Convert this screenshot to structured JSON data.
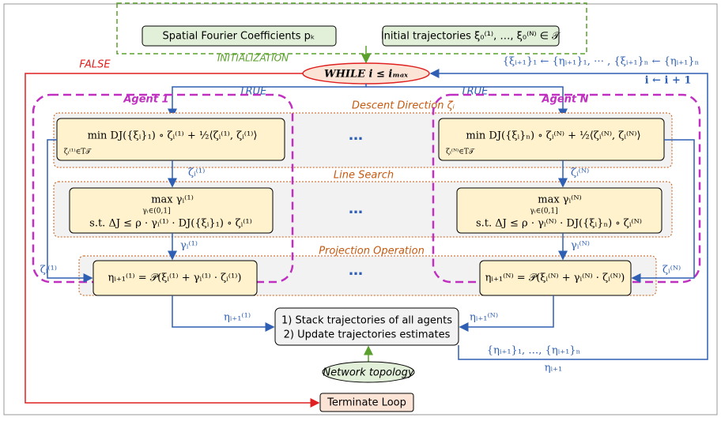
{
  "init": {
    "coefficients": "Spatial Fourier Coefficients pₖ",
    "trajectories": "Initial trajectories ξ₀⁽¹⁾, …, ξ₀⁽ᴺ⁾ ∈ 𝒯",
    "label": "INITIALIZATION"
  },
  "loop": {
    "condition": "WHILE i ≤ iₘₐₓ",
    "false_label": "FALSE",
    "true_labels": [
      "TRUE",
      "TRUE"
    ],
    "update": "{ξᵢ₊₁}₁ ← {ηᵢ₊₁}₁, ⋯ , {ξᵢ₊₁}ₙ ← {ηᵢ₊₁}ₙ",
    "increment": "i ← i + 1",
    "terminate": "Terminate Loop"
  },
  "agents": [
    {
      "name": "Agent 1"
    },
    {
      "name": "Agent N"
    }
  ],
  "stages": {
    "descent": "Descent Direction ζᵢ",
    "line_search": "Line Search",
    "projection": "Projection Operation",
    "ellipsis": [
      "…",
      "…",
      "…"
    ]
  },
  "agent_1": {
    "descent": "min  DJ({ξᵢ}₁) ∘ ζᵢ⁽¹⁾ + ½⟨ζᵢ⁽¹⁾, ζᵢ⁽¹⁾⟩",
    "descent_sub": "ζᵢ⁽¹⁾∈T𝒯",
    "line_max": "max γᵢ⁽¹⁾",
    "line_sub": "γᵢ∈(0,1]",
    "line_st": "s.t.   ΔJ ≤ ρ · γᵢ⁽¹⁾ · DJ({ξᵢ}₁) ∘ ζᵢ⁽¹⁾",
    "projection": "ηᵢ₊₁⁽¹⁾ = 𝒫(ξᵢ⁽¹⁾ + γᵢ⁽¹⁾ · ζᵢ⁽¹⁾)",
    "zeta": "ζᵢ⁽¹⁾",
    "gamma": "γᵢ⁽¹⁾",
    "eta": "ηᵢ₊₁⁽¹⁾",
    "zeta_side": "ζᵢ⁽¹⁾"
  },
  "agent_n": {
    "descent": "min  DJ({ξᵢ}ₙ) ∘ ζᵢ⁽ᴺ⁾ + ½⟨ζᵢ⁽ᴺ⁾, ζᵢ⁽ᴺ⁾⟩",
    "descent_sub": "ζᵢ⁽ᴺ⁾∈T𝒯",
    "line_max": "max γᵢ⁽ᴺ⁾",
    "line_sub": "γᵢ∈(0,1]",
    "line_st": "s.t.   ΔJ ≤ ρ · γᵢ⁽ᴺ⁾ · DJ({ξᵢ}ₙ) ∘ ζᵢ⁽ᴺ⁾",
    "projection": "ηᵢ₊₁⁽ᴺ⁾ = 𝒫(ξᵢ⁽ᴺ⁾ + γᵢ⁽ᴺ⁾ · ζᵢ⁽ᴺ⁾)",
    "zeta": "ζᵢ⁽ᴺ⁾",
    "gamma": "γᵢ⁽ᴺ⁾",
    "eta": "ηᵢ₊₁⁽ᴺ⁾",
    "zeta_side": "ζᵢ⁽ᴺ⁾"
  },
  "aggregate": {
    "line1": "1) Stack trajectories of all agents",
    "line2": "2) Update trajectories estimates",
    "network": "Network topology",
    "stacked": "{ηᵢ₊₁}₁, …, {ηᵢ₊₁}ₙ",
    "eta": "ηᵢ₊₁"
  }
}
